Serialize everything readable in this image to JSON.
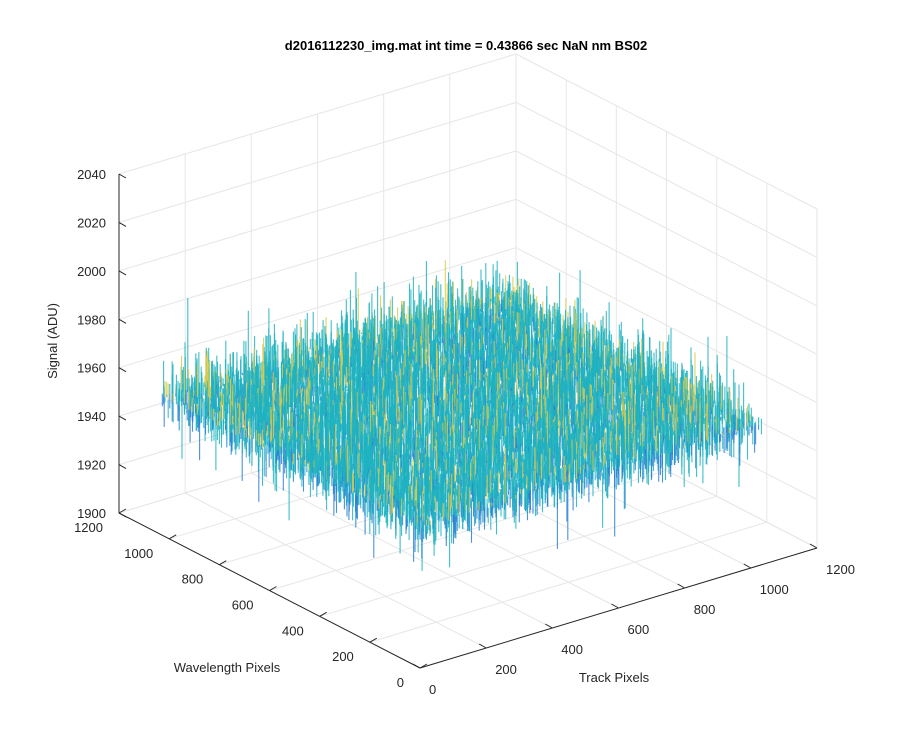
{
  "chart_data": {
    "type": "surface",
    "title": "d2016112230_img.mat int time = 0.43866 sec  NaN nm BS02",
    "xlabel": "Track Pixels",
    "ylabel": "Wavelength Pixels",
    "zlabel": "Signal (ADU)",
    "xlim": [
      0,
      1200
    ],
    "ylim": [
      0,
      1200
    ],
    "zlim": [
      1900,
      2040
    ],
    "xticks": [
      0,
      200,
      400,
      600,
      800,
      1000,
      1200
    ],
    "yticks": [
      0,
      200,
      400,
      600,
      800,
      1000,
      1200
    ],
    "zticks": [
      1900,
      1920,
      1940,
      1960,
      1980,
      2000,
      2020,
      2040
    ],
    "grid": true,
    "colormap": "parula",
    "surface_extent": {
      "x": [
        0,
        1024
      ],
      "y": [
        0,
        1024
      ]
    },
    "signal_mean": 1958,
    "signal_noise_range": [
      1910,
      2035
    ],
    "colors": {
      "low": "#2a7fd4",
      "mid": "#1fb3c0",
      "high": "#d8c94a"
    }
  }
}
